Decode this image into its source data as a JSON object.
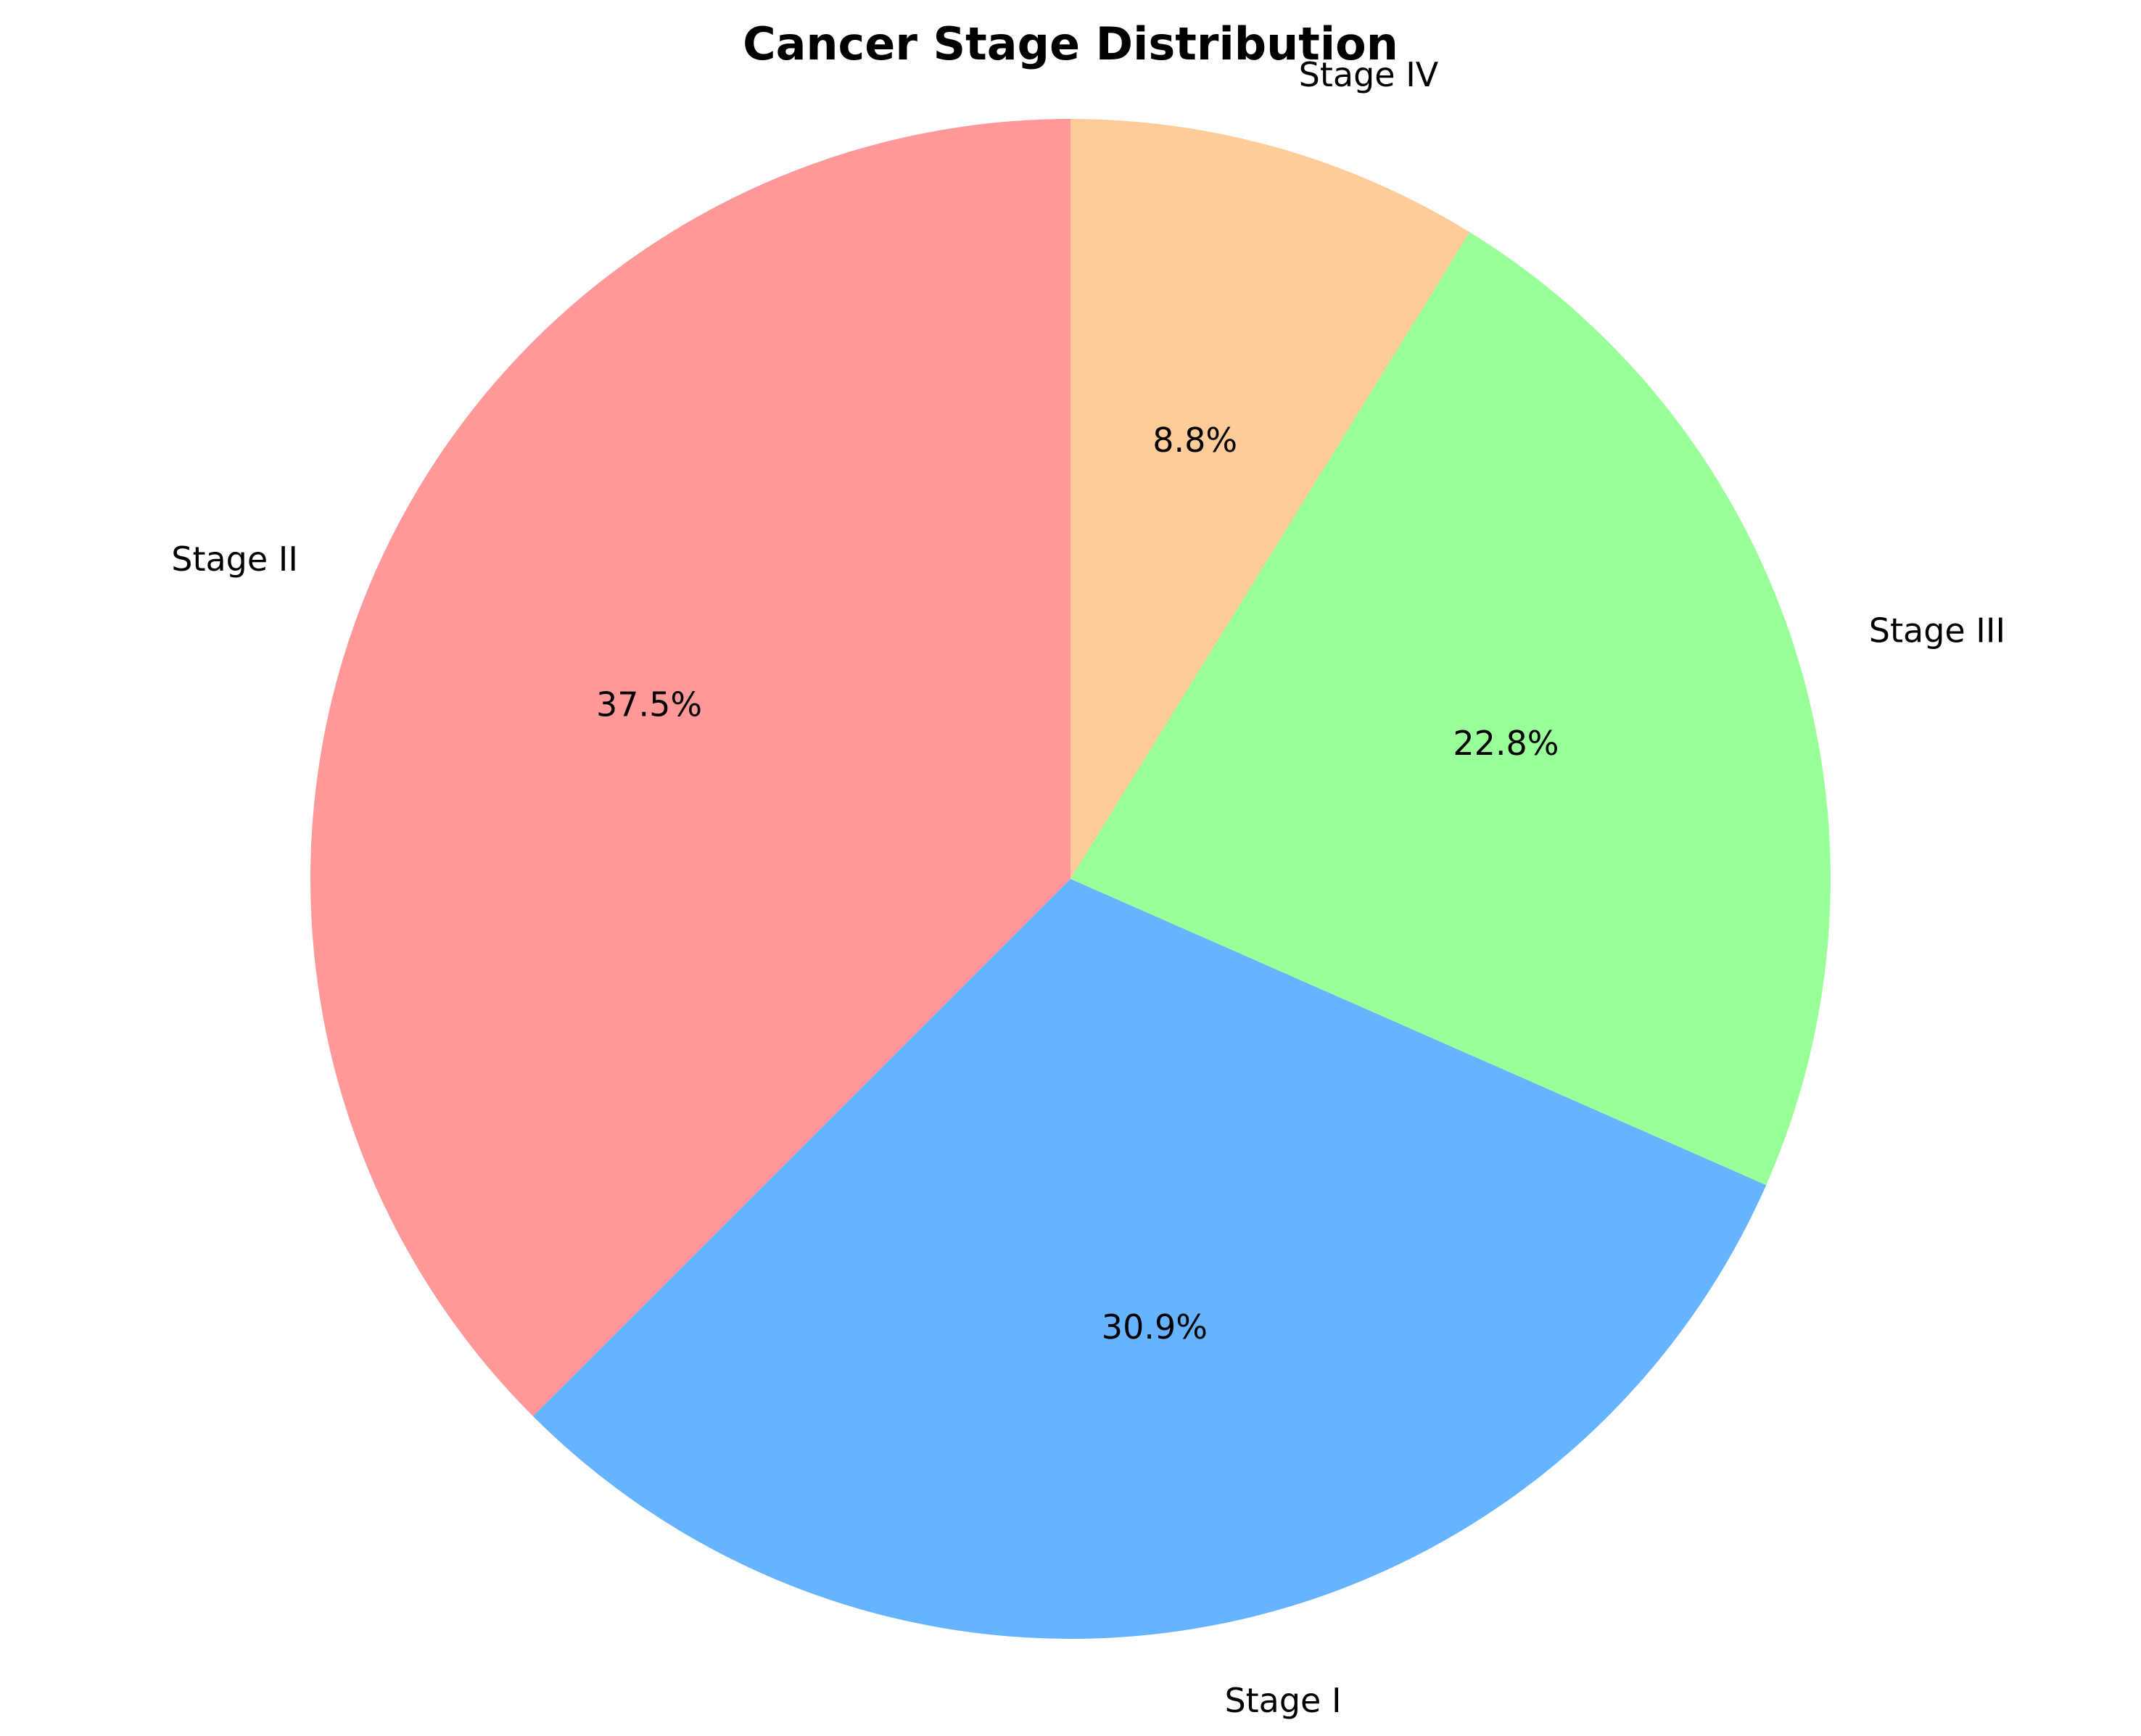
{
  "chart_data": {
    "type": "pie",
    "title": "Cancer Stage Distribution",
    "start_angle_deg": 90,
    "direction": "counterclockwise",
    "slices": [
      {
        "label": "Stage II",
        "value": 37.5,
        "pct_text": "37.5%",
        "color": "#FF9999"
      },
      {
        "label": "Stage I",
        "value": 30.9,
        "pct_text": "30.9%",
        "color": "#66B3FF"
      },
      {
        "label": "Stage III",
        "value": 22.8,
        "pct_text": "22.8%",
        "color": "#99FF99"
      },
      {
        "label": "Stage IV",
        "value": 8.8,
        "pct_text": "8.8%",
        "color": "#FFCC99"
      }
    ]
  }
}
